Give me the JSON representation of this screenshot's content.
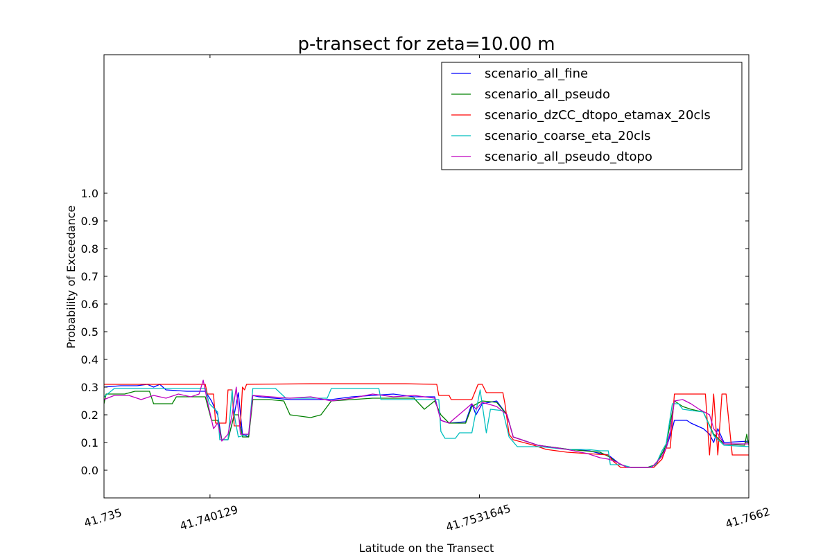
{
  "chart_data": {
    "type": "line",
    "title": "p-transect for zeta=10.00 m",
    "xlabel": "Latitude on the Transect",
    "ylabel": "Probability of Exceedance",
    "xlim": [
      41.735,
      41.7662
    ],
    "ylim": [
      -0.1,
      1.5
    ],
    "x_ticks": [
      41.735,
      41.740129,
      41.7531645,
      41.7662
    ],
    "x_tick_labels": [
      "41.735",
      "41.740129",
      "41.7531645",
      "41.7662"
    ],
    "y_ticks": [
      0.0,
      0.1,
      0.2,
      0.3,
      0.4,
      0.5,
      0.6,
      0.7,
      0.8,
      0.9,
      1.0
    ],
    "y_tick_labels": [
      "0.0",
      "0.1",
      "0.2",
      "0.3",
      "0.4",
      "0.5",
      "0.6",
      "0.7",
      "0.8",
      "0.9",
      "1.0"
    ],
    "grid": false,
    "legend_position": "top-right",
    "series": [
      {
        "name": "scenario_all_fine",
        "color": "#0000ff",
        "points": [
          [
            41.735,
            0.3
          ],
          [
            41.7358,
            0.305
          ],
          [
            41.7366,
            0.305
          ],
          [
            41.7371,
            0.31
          ],
          [
            41.7374,
            0.3
          ],
          [
            41.7377,
            0.31
          ],
          [
            41.738,
            0.29
          ],
          [
            41.739,
            0.285
          ],
          [
            41.7399,
            0.285
          ],
          [
            41.7402,
            0.25
          ],
          [
            41.7405,
            0.2
          ],
          [
            41.7407,
            0.11
          ],
          [
            41.741,
            0.11
          ],
          [
            41.7413,
            0.2
          ],
          [
            41.7415,
            0.28
          ],
          [
            41.7417,
            0.13
          ],
          [
            41.742,
            0.12
          ],
          [
            41.7422,
            0.27
          ],
          [
            41.7425,
            0.265
          ],
          [
            41.744,
            0.255
          ],
          [
            41.746,
            0.255
          ],
          [
            41.747,
            0.265
          ],
          [
            41.748,
            0.27
          ],
          [
            41.749,
            0.275
          ],
          [
            41.75,
            0.265
          ],
          [
            41.751,
            0.265
          ],
          [
            41.7513,
            0.18
          ],
          [
            41.7517,
            0.17
          ],
          [
            41.7525,
            0.175
          ],
          [
            41.7528,
            0.24
          ],
          [
            41.753,
            0.2
          ],
          [
            41.7533,
            0.24
          ],
          [
            41.754,
            0.25
          ],
          [
            41.7545,
            0.2
          ],
          [
            41.7548,
            0.12
          ],
          [
            41.756,
            0.09
          ],
          [
            41.7575,
            0.075
          ],
          [
            41.7585,
            0.07
          ],
          [
            41.759,
            0.06
          ],
          [
            41.7594,
            0.055
          ],
          [
            41.76,
            0.02
          ],
          [
            41.7605,
            0.01
          ],
          [
            41.7613,
            0.01
          ],
          [
            41.7617,
            0.02
          ],
          [
            41.762,
            0.06
          ],
          [
            41.7622,
            0.08
          ],
          [
            41.7625,
            0.15
          ],
          [
            41.7626,
            0.18
          ],
          [
            41.7632,
            0.18
          ],
          [
            41.7634,
            0.17
          ],
          [
            41.764,
            0.15
          ],
          [
            41.7643,
            0.13
          ],
          [
            41.7645,
            0.1
          ],
          [
            41.7647,
            0.15
          ],
          [
            41.765,
            0.1
          ],
          [
            41.7662,
            0.105
          ]
        ]
      },
      {
        "name": "scenario_all_pseudo",
        "color": "#008000",
        "points": [
          [
            41.735,
            0.24
          ],
          [
            41.7351,
            0.275
          ],
          [
            41.736,
            0.275
          ],
          [
            41.7365,
            0.285
          ],
          [
            41.7372,
            0.285
          ],
          [
            41.7374,
            0.24
          ],
          [
            41.7383,
            0.24
          ],
          [
            41.7385,
            0.265
          ],
          [
            41.7399,
            0.265
          ],
          [
            41.7402,
            0.18
          ],
          [
            41.7405,
            0.18
          ],
          [
            41.7407,
            0.11
          ],
          [
            41.741,
            0.11
          ],
          [
            41.7413,
            0.2
          ],
          [
            41.7415,
            0.2
          ],
          [
            41.7417,
            0.12
          ],
          [
            41.742,
            0.12
          ],
          [
            41.7422,
            0.255
          ],
          [
            41.743,
            0.255
          ],
          [
            41.7437,
            0.25
          ],
          [
            41.744,
            0.2
          ],
          [
            41.745,
            0.19
          ],
          [
            41.7455,
            0.2
          ],
          [
            41.746,
            0.25
          ],
          [
            41.747,
            0.255
          ],
          [
            41.748,
            0.26
          ],
          [
            41.75,
            0.26
          ],
          [
            41.7505,
            0.22
          ],
          [
            41.751,
            0.25
          ],
          [
            41.7513,
            0.2
          ],
          [
            41.7517,
            0.17
          ],
          [
            41.7525,
            0.17
          ],
          [
            41.7528,
            0.23
          ],
          [
            41.7533,
            0.25
          ],
          [
            41.754,
            0.245
          ],
          [
            41.7545,
            0.2
          ],
          [
            41.7548,
            0.12
          ],
          [
            41.756,
            0.09
          ],
          [
            41.7575,
            0.075
          ],
          [
            41.759,
            0.065
          ],
          [
            41.7594,
            0.05
          ],
          [
            41.76,
            0.02
          ],
          [
            41.7605,
            0.01
          ],
          [
            41.7613,
            0.01
          ],
          [
            41.7617,
            0.02
          ],
          [
            41.762,
            0.06
          ],
          [
            41.7622,
            0.09
          ],
          [
            41.7625,
            0.21
          ],
          [
            41.7626,
            0.25
          ],
          [
            41.763,
            0.23
          ],
          [
            41.7634,
            0.22
          ],
          [
            41.764,
            0.21
          ],
          [
            41.7645,
            0.13
          ],
          [
            41.765,
            0.095
          ],
          [
            41.766,
            0.09
          ],
          [
            41.7661,
            0.13
          ],
          [
            41.7662,
            0.09
          ]
        ]
      },
      {
        "name": "scenario_dzCC_dtopo_etamax_20cls",
        "color": "#ff0000",
        "points": [
          [
            41.735,
            0.31
          ],
          [
            41.7399,
            0.31
          ],
          [
            41.74,
            0.275
          ],
          [
            41.7403,
            0.275
          ],
          [
            41.7404,
            0.17
          ],
          [
            41.7409,
            0.17
          ],
          [
            41.741,
            0.29
          ],
          [
            41.7412,
            0.29
          ],
          [
            41.7413,
            0.16
          ],
          [
            41.7416,
            0.16
          ],
          [
            41.7417,
            0.3
          ],
          [
            41.7418,
            0.29
          ],
          [
            41.7419,
            0.31
          ],
          [
            41.745,
            0.312
          ],
          [
            41.7496,
            0.312
          ],
          [
            41.7511,
            0.31
          ],
          [
            41.7512,
            0.27
          ],
          [
            41.7517,
            0.27
          ],
          [
            41.7518,
            0.255
          ],
          [
            41.7528,
            0.255
          ],
          [
            41.7531,
            0.31
          ],
          [
            41.7533,
            0.31
          ],
          [
            41.7535,
            0.28
          ],
          [
            41.7543,
            0.28
          ],
          [
            41.7544,
            0.24
          ],
          [
            41.7546,
            0.13
          ],
          [
            41.7548,
            0.11
          ],
          [
            41.7558,
            0.09
          ],
          [
            41.7564,
            0.075
          ],
          [
            41.7574,
            0.065
          ],
          [
            41.7584,
            0.06
          ],
          [
            41.7594,
            0.055
          ],
          [
            41.7596,
            0.035
          ],
          [
            41.76,
            0.01
          ],
          [
            41.7616,
            0.01
          ],
          [
            41.762,
            0.04
          ],
          [
            41.7622,
            0.08
          ],
          [
            41.7624,
            0.08
          ],
          [
            41.7626,
            0.275
          ],
          [
            41.7641,
            0.275
          ],
          [
            41.7643,
            0.055
          ],
          [
            41.7645,
            0.275
          ],
          [
            41.7647,
            0.055
          ],
          [
            41.7649,
            0.275
          ],
          [
            41.7651,
            0.275
          ],
          [
            41.7654,
            0.055
          ],
          [
            41.7662,
            0.055
          ]
        ]
      },
      {
        "name": "scenario_coarse_eta_20cls",
        "color": "#00bfbf",
        "points": [
          [
            41.735,
            0.265
          ],
          [
            41.7355,
            0.295
          ],
          [
            41.7399,
            0.295
          ],
          [
            41.7401,
            0.24
          ],
          [
            41.7405,
            0.21
          ],
          [
            41.7406,
            0.11
          ],
          [
            41.741,
            0.11
          ],
          [
            41.7412,
            0.29
          ],
          [
            41.7413,
            0.2
          ],
          [
            41.7415,
            0.12
          ],
          [
            41.742,
            0.13
          ],
          [
            41.7422,
            0.295
          ],
          [
            41.7433,
            0.295
          ],
          [
            41.7438,
            0.26
          ],
          [
            41.745,
            0.26
          ],
          [
            41.7458,
            0.26
          ],
          [
            41.746,
            0.295
          ],
          [
            41.7483,
            0.295
          ],
          [
            41.7484,
            0.255
          ],
          [
            41.7512,
            0.255
          ],
          [
            41.7513,
            0.14
          ],
          [
            41.7515,
            0.115
          ],
          [
            41.752,
            0.115
          ],
          [
            41.7522,
            0.135
          ],
          [
            41.7528,
            0.135
          ],
          [
            41.7532,
            0.29
          ],
          [
            41.7535,
            0.135
          ],
          [
            41.7537,
            0.22
          ],
          [
            41.7543,
            0.215
          ],
          [
            41.7546,
            0.12
          ],
          [
            41.755,
            0.085
          ],
          [
            41.7561,
            0.085
          ],
          [
            41.7574,
            0.075
          ],
          [
            41.7584,
            0.075
          ],
          [
            41.759,
            0.07
          ],
          [
            41.7594,
            0.07
          ],
          [
            41.7595,
            0.02
          ],
          [
            41.76,
            0.02
          ],
          [
            41.7605,
            0.01
          ],
          [
            41.7614,
            0.01
          ],
          [
            41.7617,
            0.02
          ],
          [
            41.762,
            0.07
          ],
          [
            41.7622,
            0.095
          ],
          [
            41.7625,
            0.24
          ],
          [
            41.7628,
            0.24
          ],
          [
            41.763,
            0.22
          ],
          [
            41.764,
            0.21
          ],
          [
            41.7645,
            0.125
          ],
          [
            41.765,
            0.09
          ],
          [
            41.7662,
            0.085
          ]
        ]
      },
      {
        "name": "scenario_all_pseudo_dtopo",
        "color": "#bf00bf",
        "points": [
          [
            41.735,
            0.255
          ],
          [
            41.7355,
            0.27
          ],
          [
            41.7362,
            0.27
          ],
          [
            41.7368,
            0.255
          ],
          [
            41.7374,
            0.27
          ],
          [
            41.738,
            0.26
          ],
          [
            41.7386,
            0.275
          ],
          [
            41.7392,
            0.265
          ],
          [
            41.7396,
            0.275
          ],
          [
            41.7398,
            0.325
          ],
          [
            41.74,
            0.25
          ],
          [
            41.7403,
            0.15
          ],
          [
            41.7405,
            0.17
          ],
          [
            41.7407,
            0.105
          ],
          [
            41.741,
            0.13
          ],
          [
            41.7412,
            0.2
          ],
          [
            41.7414,
            0.3
          ],
          [
            41.7416,
            0.13
          ],
          [
            41.742,
            0.13
          ],
          [
            41.7422,
            0.27
          ],
          [
            41.744,
            0.26
          ],
          [
            41.745,
            0.265
          ],
          [
            41.746,
            0.25
          ],
          [
            41.747,
            0.26
          ],
          [
            41.748,
            0.275
          ],
          [
            41.749,
            0.265
          ],
          [
            41.75,
            0.27
          ],
          [
            41.751,
            0.26
          ],
          [
            41.7513,
            0.18
          ],
          [
            41.7517,
            0.17
          ],
          [
            41.7528,
            0.24
          ],
          [
            41.753,
            0.22
          ],
          [
            41.7533,
            0.245
          ],
          [
            41.754,
            0.23
          ],
          [
            41.7545,
            0.2
          ],
          [
            41.7548,
            0.12
          ],
          [
            41.756,
            0.09
          ],
          [
            41.7574,
            0.075
          ],
          [
            41.7584,
            0.06
          ],
          [
            41.759,
            0.045
          ],
          [
            41.7594,
            0.04
          ],
          [
            41.7598,
            0.03
          ],
          [
            41.7603,
            0.01
          ],
          [
            41.7615,
            0.01
          ],
          [
            41.762,
            0.05
          ],
          [
            41.7622,
            0.08
          ],
          [
            41.7624,
            0.14
          ],
          [
            41.7626,
            0.25
          ],
          [
            41.763,
            0.255
          ],
          [
            41.7634,
            0.24
          ],
          [
            41.7638,
            0.22
          ],
          [
            41.7643,
            0.2
          ],
          [
            41.7645,
            0.15
          ],
          [
            41.7648,
            0.12
          ],
          [
            41.765,
            0.095
          ],
          [
            41.7662,
            0.095
          ]
        ]
      }
    ]
  }
}
